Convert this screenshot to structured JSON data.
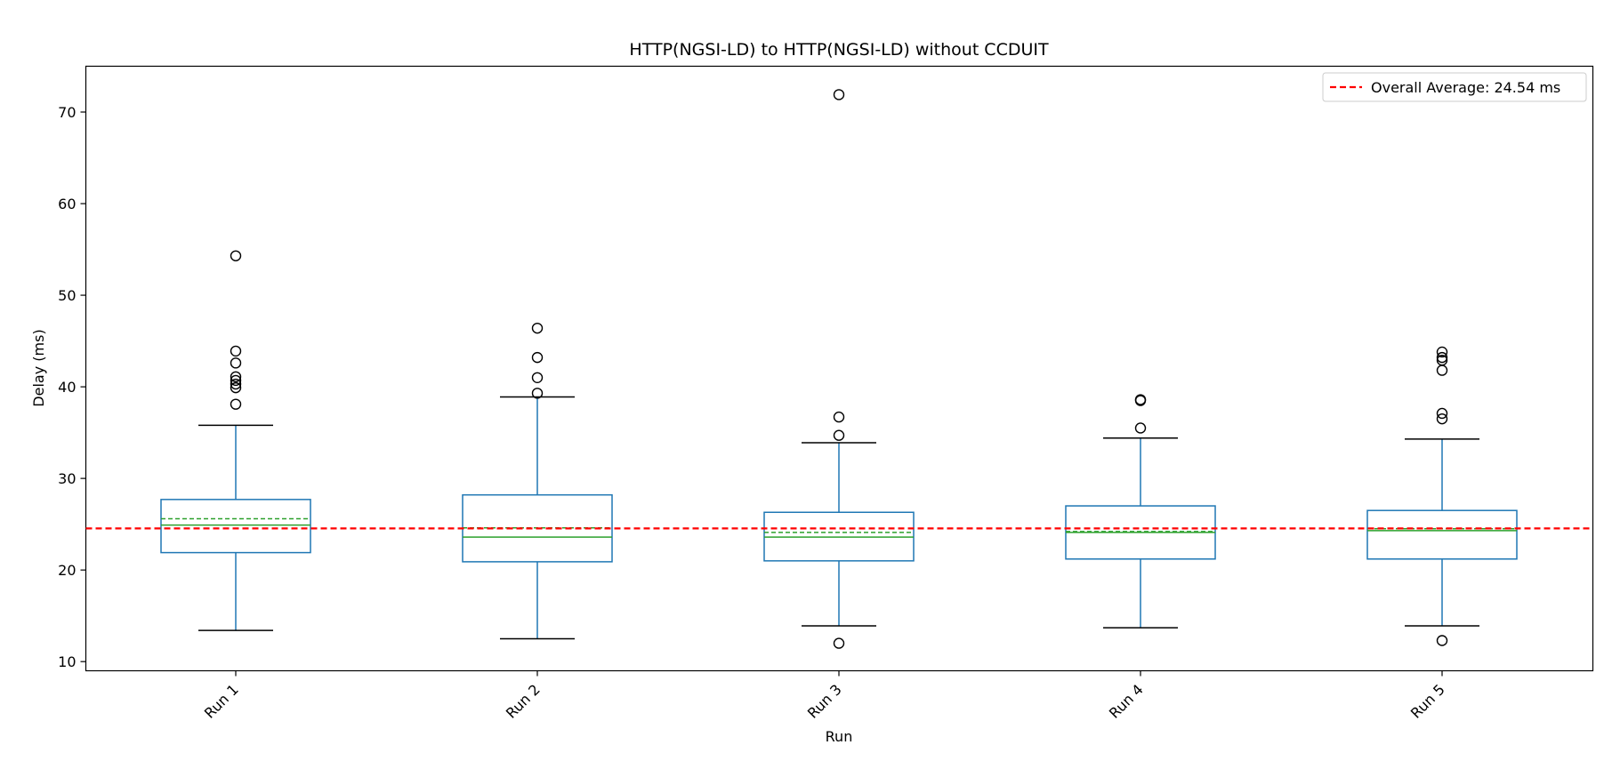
{
  "chart_data": {
    "type": "box",
    "title": "HTTP(NGSI-LD) to HTTP(NGSI-LD) without CCDUIT",
    "xlabel": "Run",
    "ylabel": "Delay (ms)",
    "ylim": [
      9.0,
      75.0
    ],
    "yticks": [
      10,
      20,
      30,
      40,
      50,
      60,
      70
    ],
    "grid": false,
    "legend_position": "top-right",
    "reference_line": {
      "label": "Overall Average: 24.54 ms",
      "value": 24.54,
      "color": "#ff0000",
      "style": "dashed"
    },
    "colors": {
      "box": "#1f77b4",
      "median": "#2ca02c",
      "mean": "#2ca02c",
      "whisker_cap": "#000000",
      "flier": "#000000"
    },
    "categories": [
      "Run 1",
      "Run 2",
      "Run 3",
      "Run 4",
      "Run 5"
    ],
    "boxes": [
      {
        "label": "Run 1",
        "whisker_low": 13.4,
        "q1": 21.9,
        "median": 24.9,
        "mean": 25.6,
        "q3": 27.7,
        "whisker_high": 35.8,
        "fliers": [
          38.1,
          39.9,
          40.3,
          40.7,
          41.1,
          42.6,
          43.9,
          54.3
        ]
      },
      {
        "label": "Run 2",
        "whisker_low": 12.5,
        "q1": 20.9,
        "median": 23.6,
        "mean": 24.6,
        "q3": 28.2,
        "whisker_high": 38.9,
        "fliers": [
          39.3,
          41.0,
          43.2,
          46.4
        ]
      },
      {
        "label": "Run 3",
        "whisker_low": 13.9,
        "q1": 21.0,
        "median": 23.6,
        "mean": 24.1,
        "q3": 26.3,
        "whisker_high": 33.9,
        "fliers": [
          12.0,
          34.7,
          36.7,
          71.9
        ]
      },
      {
        "label": "Run 4",
        "whisker_low": 13.7,
        "q1": 21.2,
        "median": 24.1,
        "mean": 24.2,
        "q3": 27.0,
        "whisker_high": 34.4,
        "fliers": [
          35.5,
          38.5,
          38.6
        ]
      },
      {
        "label": "Run 5",
        "whisker_low": 13.9,
        "q1": 21.2,
        "median": 24.3,
        "mean": 24.5,
        "q3": 26.5,
        "whisker_high": 34.3,
        "fliers": [
          12.3,
          36.5,
          37.1,
          41.8,
          42.9,
          43.2,
          43.8
        ]
      }
    ]
  }
}
